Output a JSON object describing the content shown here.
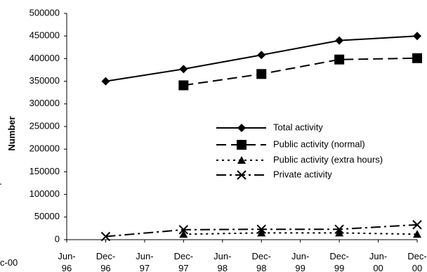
{
  "chart_data": {
    "type": "line",
    "ylabel": "Number",
    "xlabel": "",
    "ylim": [
      0,
      500000
    ],
    "y_ticks": [
      0,
      50000,
      100000,
      150000,
      200000,
      250000,
      300000,
      350000,
      400000,
      450000,
      500000
    ],
    "x_categories": [
      "Jun-96",
      "Dec-96",
      "Jun-97",
      "Dec-97",
      "Jun-98",
      "Dec-98",
      "Jun-99",
      "Dec-99",
      "Jun-00",
      "Dec-00"
    ],
    "x_tick_labels": [
      [
        "Jun-",
        "96"
      ],
      [
        "Dec-",
        "96"
      ],
      [
        "Jun-",
        "97"
      ],
      [
        "Dec-",
        "97"
      ],
      [
        "Jun-",
        "98"
      ],
      [
        "Dec-",
        "98"
      ],
      [
        "Jun-",
        "99"
      ],
      [
        "Dec-",
        "99"
      ],
      [
        "Jun-",
        "00"
      ],
      [
        "Dec-",
        "00"
      ]
    ],
    "legend_position": "center-right",
    "series": [
      {
        "name": "Total activity",
        "marker": "diamond",
        "dash": "solid",
        "color": "#000000",
        "points": [
          [
            "Dec-96",
            350000
          ],
          [
            "Dec-97",
            377000
          ],
          [
            "Dec-98",
            408000
          ],
          [
            "Dec-99",
            440000
          ],
          [
            "Dec-00",
            450000
          ]
        ]
      },
      {
        "name": "Public activity (normal)",
        "marker": "square",
        "dash": "long-dash",
        "color": "#000000",
        "points": [
          [
            "Dec-97",
            341000
          ],
          [
            "Dec-98",
            366000
          ],
          [
            "Dec-99",
            398000
          ],
          [
            "Dec-00",
            401000
          ]
        ]
      },
      {
        "name": "Public activity (extra hours)",
        "marker": "triangle",
        "dash": "dotted",
        "color": "#000000",
        "points": [
          [
            "Dec-97",
            12000
          ],
          [
            "Dec-98",
            15000
          ],
          [
            "Dec-99",
            15000
          ],
          [
            "Dec-00",
            12000
          ]
        ]
      },
      {
        "name": "Private activity",
        "marker": "x",
        "dash": "dash-dot",
        "color": "#000000",
        "points": [
          [
            "Dec-96",
            7000
          ],
          [
            "Dec-97",
            22000
          ],
          [
            "Dec-98",
            23000
          ],
          [
            "Dec-99",
            23000
          ],
          [
            "Dec-00",
            33000
          ]
        ]
      }
    ]
  },
  "cropped_left_text": "c-00"
}
